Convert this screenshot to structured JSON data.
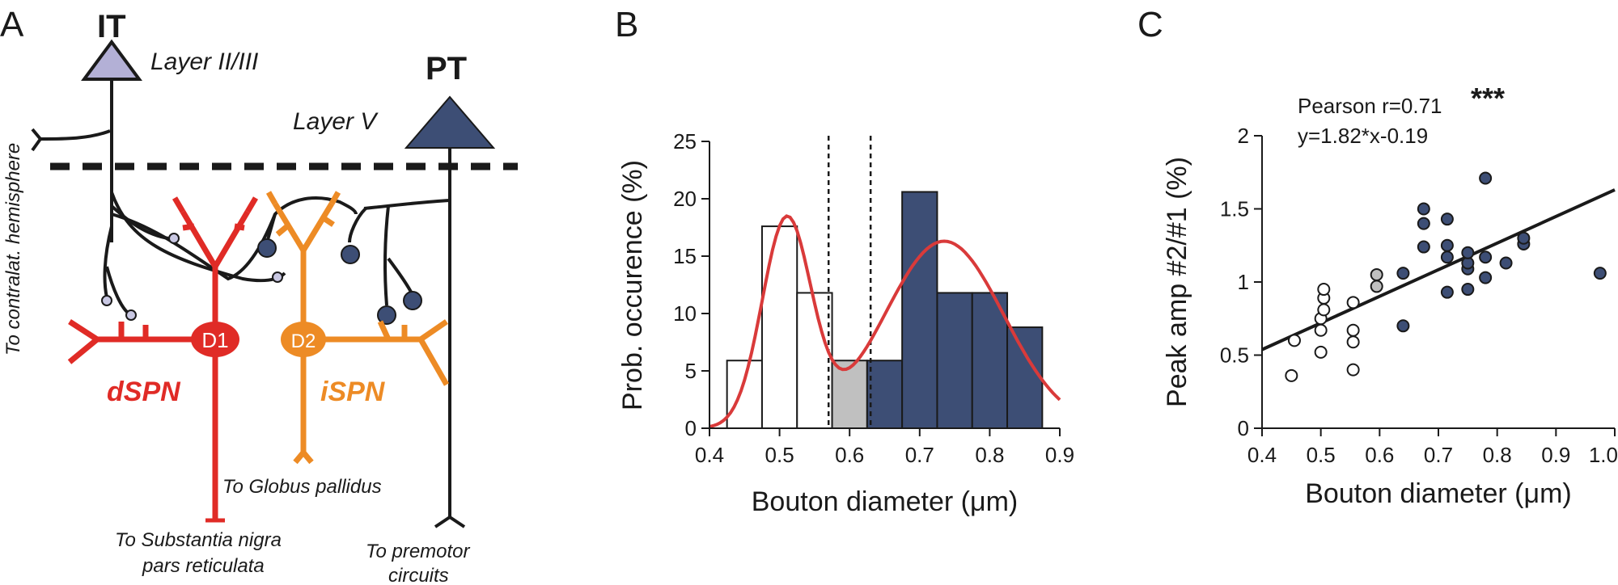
{
  "panels": {
    "A": {
      "panel_letter": "A",
      "it_label": "IT",
      "it_layer": "Layer II/III",
      "pt_label": "PT",
      "pt_layer": "Layer V",
      "contralateral": "To contralat. hemisphere",
      "dspn_label": "dSPN",
      "ispn_label": "iSPN",
      "d1_label": "D1",
      "d2_label": "D2",
      "globus_pallidus": "To Globus pallidus",
      "snr_line1": "To Substantia nigra",
      "snr_line2": "pars reticulata",
      "premotor_line1": "To premotor",
      "premotor_line2": "circuits"
    },
    "B": {
      "panel_letter": "B"
    },
    "C": {
      "panel_letter": "C"
    }
  },
  "colors": {
    "it_soma": "#b3b0d6",
    "pt_soma": "#3d4e75",
    "dspn": "#e02b26",
    "ispn": "#ed8b25",
    "axon": "#1a1a1a",
    "small_bouton": "#c9c8e3",
    "large_bouton": "#3d4e75",
    "fit_curve": "#d93a3a",
    "gray_bar": "#c0c0c0"
  },
  "chart_data": [
    {
      "id": "B",
      "type": "bar",
      "xlabel": "Bouton diameter (μm)",
      "ylabel": "Prob. occurence (%)",
      "xlim": [
        0.4,
        0.9
      ],
      "ylim": [
        0,
        25
      ],
      "xticks": [
        "0.4",
        "0.5",
        "0.6",
        "0.7",
        "0.8",
        "0.9"
      ],
      "yticks": [
        "0",
        "5",
        "10",
        "15",
        "20",
        "25"
      ],
      "bin_width": 0.05,
      "bars": [
        {
          "left": 0.425,
          "value": 5.9,
          "group": "small"
        },
        {
          "left": 0.475,
          "value": 17.6,
          "group": "small"
        },
        {
          "left": 0.525,
          "value": 11.8,
          "group": "small"
        },
        {
          "left": 0.575,
          "value": 5.9,
          "group": "intermediate"
        },
        {
          "left": 0.625,
          "value": 5.9,
          "group": "large"
        },
        {
          "left": 0.675,
          "value": 20.6,
          "group": "large"
        },
        {
          "left": 0.725,
          "value": 11.8,
          "group": "large"
        },
        {
          "left": 0.775,
          "value": 11.8,
          "group": "large"
        },
        {
          "left": 0.825,
          "value": 8.8,
          "group": "large"
        }
      ],
      "thresholds": [
        0.57,
        0.63
      ],
      "fit": {
        "type": "bimodal gaussian",
        "components": [
          {
            "amplitude": 18.0,
            "mean": 0.51,
            "sd": 0.035
          },
          {
            "amplitude": 16.3,
            "mean": 0.735,
            "sd": 0.085
          }
        ]
      }
    },
    {
      "id": "C",
      "type": "scatter",
      "xlabel": "Bouton diameter (μm)",
      "ylabel": "Peak amp #2/#1  (%)",
      "xlim": [
        0.4,
        1.0
      ],
      "ylim": [
        0,
        2
      ],
      "xticks": [
        "0.4",
        "0.5",
        "0.6",
        "0.7",
        "0.8",
        "0.9",
        "1.0"
      ],
      "yticks": [
        "0",
        "0.5",
        "1",
        "1.5",
        "2"
      ],
      "annotation_line1": "Pearson r=0.71",
      "annotation_line2": "y=1.82*x-0.19",
      "significance": "***",
      "regression": {
        "slope": 1.82,
        "intercept": -0.19,
        "x_range": [
          0.4,
          1.0
        ]
      },
      "series": [
        {
          "name": "small",
          "points": [
            [
              0.45,
              0.36
            ],
            [
              0.455,
              0.6
            ],
            [
              0.5,
              0.52
            ],
            [
              0.5,
              0.67
            ],
            [
              0.5,
              0.75
            ],
            [
              0.505,
              0.81
            ],
            [
              0.505,
              0.89
            ],
            [
              0.505,
              0.95
            ],
            [
              0.555,
              0.4
            ],
            [
              0.555,
              0.59
            ],
            [
              0.555,
              0.67
            ],
            [
              0.555,
              0.86
            ]
          ]
        },
        {
          "name": "intermediate",
          "points": [
            [
              0.595,
              0.97
            ],
            [
              0.595,
              1.05
            ]
          ]
        },
        {
          "name": "large",
          "points": [
            [
              0.64,
              0.7
            ],
            [
              0.64,
              1.06
            ],
            [
              0.675,
              1.24
            ],
            [
              0.675,
              1.4
            ],
            [
              0.675,
              1.5
            ],
            [
              0.715,
              0.93
            ],
            [
              0.715,
              1.17
            ],
            [
              0.715,
              1.25
            ],
            [
              0.715,
              1.43
            ],
            [
              0.75,
              0.95
            ],
            [
              0.75,
              1.09
            ],
            [
              0.75,
              1.13
            ],
            [
              0.75,
              1.2
            ],
            [
              0.78,
              1.03
            ],
            [
              0.78,
              1.17
            ],
            [
              0.78,
              1.71
            ],
            [
              0.815,
              1.13
            ],
            [
              0.845,
              1.26
            ],
            [
              0.845,
              1.3
            ],
            [
              0.975,
              1.06
            ]
          ]
        }
      ]
    }
  ]
}
